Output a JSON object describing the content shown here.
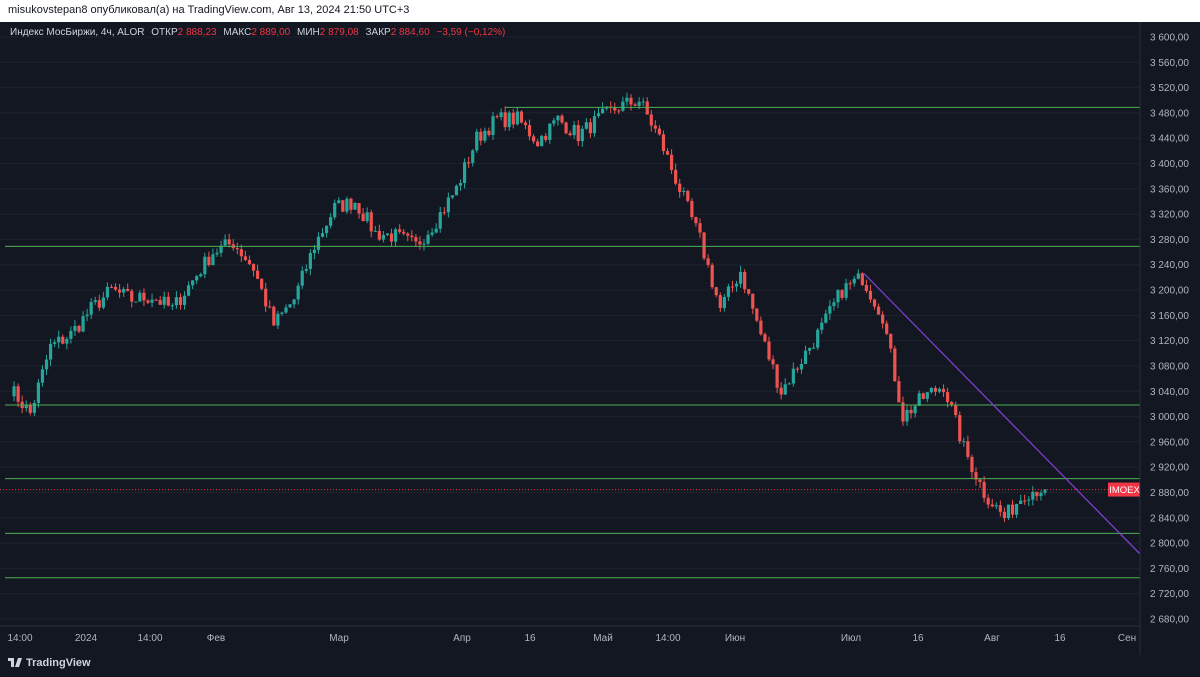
{
  "header": {
    "publish_text": "misukovstepan8 опубликовал(а) на TradingView.com, Авг 13, 2024 21:50 UTC+3"
  },
  "legend": {
    "title": "Индекс МосБиржи, 4ч, ALOR",
    "items": [
      {
        "label": "ОТКР",
        "value": "2 888,23"
      },
      {
        "label": "МАКС",
        "value": "2 889,00"
      },
      {
        "label": "МИН",
        "value": "2 879,08"
      },
      {
        "label": "ЗАКР",
        "value": "2 884,60"
      }
    ],
    "change": "−3,59 (−0,12%)"
  },
  "footer": {
    "brand": "TradingView"
  },
  "colors": {
    "background": "#131722",
    "up": "#26a69a",
    "down": "#ef5350",
    "level_line": "#4caf50",
    "trend_line": "#7b3fd1",
    "price_tag": "#f23645"
  },
  "chart_data": {
    "type": "candlestick",
    "symbol": "IMOEX",
    "timeframe": "4ч",
    "last_price": 2884.6,
    "last_price_label": "2 884,60",
    "ylim": [
      2665,
      3610
    ],
    "y_ticks": [
      {
        "value": 3600,
        "label": "3 600,00"
      },
      {
        "value": 3560,
        "label": "3 560,00"
      },
      {
        "value": 3520,
        "label": "3 520,00"
      },
      {
        "value": 3480,
        "label": "3 480,00"
      },
      {
        "value": 3440,
        "label": "3 440,00"
      },
      {
        "value": 3400,
        "label": "3 400,00"
      },
      {
        "value": 3360,
        "label": "3 360,00"
      },
      {
        "value": 3320,
        "label": "3 320,00"
      },
      {
        "value": 3280,
        "label": "3 280,00"
      },
      {
        "value": 3240,
        "label": "3 240,00"
      },
      {
        "value": 3200,
        "label": "3 200,00"
      },
      {
        "value": 3160,
        "label": "3 160,00"
      },
      {
        "value": 3120,
        "label": "3 120,00"
      },
      {
        "value": 3080,
        "label": "3 080,00"
      },
      {
        "value": 3040,
        "label": "3 040,00"
      },
      {
        "value": 3000,
        "label": "3 000,00"
      },
      {
        "value": 2960,
        "label": "2 960,00"
      },
      {
        "value": 2920,
        "label": "2 920,00"
      },
      {
        "value": 2880,
        "label": "2 880,00"
      },
      {
        "value": 2840,
        "label": "2 840,00"
      },
      {
        "value": 2800,
        "label": "2 800,00"
      },
      {
        "value": 2760,
        "label": "2 760,00"
      },
      {
        "value": 2720,
        "label": "2 720,00"
      },
      {
        "value": 2680,
        "label": "2 680,00"
      }
    ],
    "x_ticks": [
      "14:00",
      "2024",
      "14:00",
      "Фев",
      "Мар",
      "Апр",
      "16",
      "Май",
      "14:00",
      "Июн",
      "Июл",
      "16",
      "Авг",
      "16",
      "Сен"
    ],
    "horizontal_levels": [
      {
        "value": 3488.75,
        "label": "3 488,75"
      },
      {
        "value": 3269.06,
        "label": "3 269,06"
      },
      {
        "value": 3018.27,
        "label": "3 018,27"
      },
      {
        "value": 2901.97,
        "label": "2 901,97"
      },
      {
        "value": 2815.35,
        "label": "2 815,35"
      },
      {
        "value": 2745.27,
        "label": "2 745,27"
      }
    ],
    "trend_line": {
      "from": {
        "date": "Июл",
        "price": 3226
      },
      "to": {
        "date": "Сен",
        "price": 2778
      }
    },
    "price_path_keypoints": [
      3045,
      3005,
      3110,
      3130,
      3170,
      3200,
      3185,
      3190,
      3170,
      3215,
      3260,
      3275,
      3235,
      3145,
      3185,
      3270,
      3330,
      3340,
      3290,
      3285,
      3270,
      3310,
      3360,
      3440,
      3470,
      3470,
      3435,
      3470,
      3445,
      3470,
      3490,
      3500,
      3440,
      3360,
      3280,
      3170,
      3230,
      3130,
      3040,
      3090,
      3140,
      3200,
      3220,
      3160,
      3000,
      3030,
      3050,
      2950,
      2880,
      2840,
      2880,
      2888
    ]
  }
}
